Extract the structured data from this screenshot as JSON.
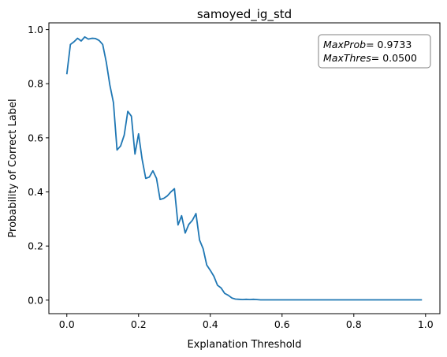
{
  "chart_data": {
    "type": "line",
    "title": "samoyed_ig_std",
    "xlabel": "Explanation Threshold",
    "ylabel": "Probability of Correct Label",
    "xlim": [
      -0.05,
      1.04
    ],
    "ylim": [
      -0.05,
      1.025
    ],
    "xticks": [
      0.0,
      0.2,
      0.4,
      0.6,
      0.8,
      1.0
    ],
    "xtick_labels": [
      "0.0",
      "0.2",
      "0.4",
      "0.6",
      "0.8",
      "1.0"
    ],
    "yticks": [
      0.0,
      0.2,
      0.4,
      0.6,
      0.8,
      1.0
    ],
    "ytick_labels": [
      "0.0",
      "0.2",
      "0.4",
      "0.6",
      "0.8",
      "1.0"
    ],
    "grid": false,
    "line_color": "#1f77b4",
    "series": [
      {
        "x": [
          0.0,
          0.01,
          0.02,
          0.03,
          0.04,
          0.05,
          0.06,
          0.07,
          0.08,
          0.09,
          0.1,
          0.11,
          0.12,
          0.13,
          0.14,
          0.15,
          0.16,
          0.17,
          0.18,
          0.19,
          0.2,
          0.21,
          0.22,
          0.23,
          0.24,
          0.25,
          0.26,
          0.27,
          0.28,
          0.29,
          0.3,
          0.31,
          0.32,
          0.33,
          0.34,
          0.35,
          0.36,
          0.37,
          0.38,
          0.39,
          0.4,
          0.41,
          0.42,
          0.43,
          0.44,
          0.45,
          0.46,
          0.47,
          0.48,
          0.49,
          0.5,
          0.51,
          0.52,
          0.53,
          0.54,
          0.55,
          0.56,
          0.57,
          0.58,
          0.59,
          0.6,
          0.61,
          0.62,
          0.63,
          0.64,
          0.65,
          0.66,
          0.67,
          0.68,
          0.69,
          0.7,
          0.71,
          0.72,
          0.73,
          0.74,
          0.75,
          0.76,
          0.77,
          0.78,
          0.79,
          0.8,
          0.81,
          0.82,
          0.83,
          0.84,
          0.85,
          0.86,
          0.87,
          0.88,
          0.89,
          0.9,
          0.91,
          0.92,
          0.93,
          0.94,
          0.95,
          0.96,
          0.97,
          0.98,
          0.99
        ],
        "y": [
          0.835,
          0.945,
          0.955,
          0.968,
          0.958,
          0.973,
          0.965,
          0.968,
          0.967,
          0.96,
          0.945,
          0.88,
          0.795,
          0.73,
          0.555,
          0.57,
          0.61,
          0.698,
          0.68,
          0.54,
          0.615,
          0.52,
          0.45,
          0.455,
          0.478,
          0.45,
          0.372,
          0.376,
          0.385,
          0.4,
          0.412,
          0.278,
          0.312,
          0.248,
          0.28,
          0.295,
          0.32,
          0.222,
          0.19,
          0.13,
          0.11,
          0.088,
          0.055,
          0.045,
          0.025,
          0.018,
          0.008,
          0.004,
          0.003,
          0.002,
          0.003,
          0.002,
          0.003,
          0.002,
          0.001,
          0.001,
          0.001,
          0.001,
          0.001,
          0.001,
          0.001,
          0.001,
          0.001,
          0.001,
          0.001,
          0.001,
          0.001,
          0.001,
          0.001,
          0.001,
          0.001,
          0.001,
          0.001,
          0.001,
          0.001,
          0.001,
          0.001,
          0.001,
          0.001,
          0.001,
          0.001,
          0.001,
          0.001,
          0.001,
          0.001,
          0.001,
          0.001,
          0.001,
          0.001,
          0.001,
          0.001,
          0.001,
          0.001,
          0.001,
          0.001,
          0.001,
          0.001,
          0.001,
          0.001,
          0.001
        ]
      }
    ],
    "annotation": {
      "line1_var": "MaxProb",
      "line1_value": "= 0.9733",
      "line2_var": "MaxThres",
      "line2_value": "= 0.0500",
      "placement": "top-right"
    }
  }
}
